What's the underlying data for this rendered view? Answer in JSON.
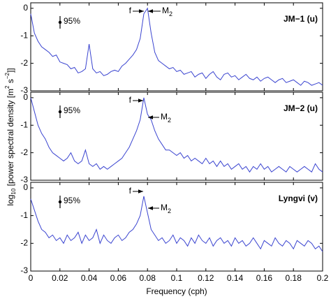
{
  "chart_data": [
    {
      "type": "line",
      "color": "#3a44d0",
      "xlim": [
        0,
        0.2
      ],
      "ylim": [
        -3,
        0.2
      ],
      "yticks": [
        -3,
        -2,
        -1,
        0
      ],
      "xticks": [
        0,
        0.02,
        0.04,
        0.06,
        0.08,
        0.1,
        0.12,
        0.14,
        0.16,
        0.18,
        0.2
      ],
      "show_xticklabels": false,
      "annotations": {
        "label": "JM−1 (u)",
        "confidence": "95%",
        "f": "f",
        "m2": "M",
        "m2_sub": "2"
      },
      "x": [
        0,
        0.0025,
        0.005,
        0.0075,
        0.01,
        0.0125,
        0.015,
        0.0175,
        0.02,
        0.0225,
        0.025,
        0.0275,
        0.03,
        0.0325,
        0.035,
        0.0375,
        0.04,
        0.0425,
        0.045,
        0.0475,
        0.05,
        0.0525,
        0.055,
        0.0575,
        0.06,
        0.0625,
        0.065,
        0.0675,
        0.07,
        0.0725,
        0.075,
        0.0775,
        0.08,
        0.0825,
        0.085,
        0.0875,
        0.09,
        0.0925,
        0.095,
        0.0975,
        0.1,
        0.1025,
        0.105,
        0.1075,
        0.11,
        0.1125,
        0.115,
        0.1175,
        0.12,
        0.1225,
        0.125,
        0.1275,
        0.13,
        0.1325,
        0.135,
        0.1375,
        0.14,
        0.1425,
        0.145,
        0.1475,
        0.15,
        0.1525,
        0.155,
        0.1575,
        0.16,
        0.1625,
        0.165,
        0.1675,
        0.17,
        0.1725,
        0.175,
        0.1775,
        0.18,
        0.1825,
        0.185,
        0.1875,
        0.19,
        0.1925,
        0.195,
        0.1975,
        0.2
      ],
      "values": [
        -0.2,
        -0.9,
        -1.2,
        -1.4,
        -1.5,
        -1.6,
        -1.75,
        -1.7,
        -1.95,
        -2.0,
        -2.05,
        -2.2,
        -2.15,
        -2.35,
        -2.3,
        -2.2,
        -1.3,
        -2.2,
        -2.35,
        -2.3,
        -2.45,
        -2.4,
        -2.3,
        -2.25,
        -2.3,
        -2.1,
        -2.0,
        -1.85,
        -1.7,
        -1.5,
        -1.1,
        -0.2,
        0.0,
        -0.9,
        -1.6,
        -1.9,
        -2.0,
        -2.1,
        -2.2,
        -2.15,
        -2.3,
        -2.25,
        -2.4,
        -2.35,
        -2.3,
        -2.5,
        -2.4,
        -2.35,
        -2.55,
        -2.4,
        -2.3,
        -2.5,
        -2.6,
        -2.4,
        -2.35,
        -2.5,
        -2.45,
        -2.6,
        -2.5,
        -2.4,
        -2.55,
        -2.6,
        -2.5,
        -2.65,
        -2.55,
        -2.5,
        -2.6,
        -2.7,
        -2.6,
        -2.55,
        -2.7,
        -2.65,
        -2.6,
        -2.7,
        -2.8,
        -2.65,
        -2.7,
        -2.8,
        -2.75,
        -2.7,
        -2.8
      ]
    },
    {
      "type": "line",
      "color": "#3a44d0",
      "xlim": [
        0,
        0.2
      ],
      "ylim": [
        -3,
        0.2
      ],
      "yticks": [
        -3,
        -2,
        -1,
        0
      ],
      "xticks": [
        0,
        0.02,
        0.04,
        0.06,
        0.08,
        0.1,
        0.12,
        0.14,
        0.16,
        0.18,
        0.2
      ],
      "show_xticklabels": false,
      "ylabel_parts": [
        "log",
        "10",
        " [power spectral density [m",
        "2",
        " s",
        "−2",
        "]]"
      ],
      "annotations": {
        "label": "JM−2 (u)",
        "confidence": "95%",
        "f": "f",
        "m2": "M",
        "m2_sub": "2"
      },
      "x": [
        0,
        0.0025,
        0.005,
        0.0075,
        0.01,
        0.0125,
        0.015,
        0.0175,
        0.02,
        0.0225,
        0.025,
        0.0275,
        0.03,
        0.0325,
        0.035,
        0.0375,
        0.04,
        0.0425,
        0.045,
        0.0475,
        0.05,
        0.0525,
        0.055,
        0.0575,
        0.06,
        0.0625,
        0.065,
        0.0675,
        0.07,
        0.0725,
        0.075,
        0.0775,
        0.08,
        0.0825,
        0.085,
        0.0875,
        0.09,
        0.0925,
        0.095,
        0.0975,
        0.1,
        0.1025,
        0.105,
        0.1075,
        0.11,
        0.1125,
        0.115,
        0.1175,
        0.12,
        0.1225,
        0.125,
        0.1275,
        0.13,
        0.1325,
        0.135,
        0.1375,
        0.14,
        0.1425,
        0.145,
        0.1475,
        0.15,
        0.1525,
        0.155,
        0.1575,
        0.16,
        0.1625,
        0.165,
        0.1675,
        0.17,
        0.1725,
        0.175,
        0.1775,
        0.18,
        0.1825,
        0.185,
        0.1875,
        0.19,
        0.1925,
        0.195,
        0.1975,
        0.2
      ],
      "values": [
        0.0,
        -0.5,
        -1.0,
        -1.3,
        -1.5,
        -1.8,
        -2.0,
        -2.1,
        -2.2,
        -2.3,
        -2.2,
        -2.0,
        -2.3,
        -2.4,
        -2.3,
        -1.9,
        -2.4,
        -2.5,
        -2.4,
        -2.6,
        -2.5,
        -2.6,
        -2.5,
        -2.4,
        -2.3,
        -2.2,
        -2.0,
        -1.8,
        -1.5,
        -1.2,
        -0.8,
        0.0,
        -0.6,
        -0.8,
        -1.2,
        -1.5,
        -1.7,
        -1.9,
        -1.9,
        -2.0,
        -2.1,
        -2.0,
        -2.2,
        -2.1,
        -2.3,
        -2.2,
        -2.3,
        -2.4,
        -2.2,
        -2.4,
        -2.3,
        -2.5,
        -2.3,
        -2.5,
        -2.4,
        -2.6,
        -2.5,
        -2.4,
        -2.6,
        -2.5,
        -2.7,
        -2.5,
        -2.6,
        -2.4,
        -2.6,
        -2.5,
        -2.7,
        -2.6,
        -2.5,
        -2.6,
        -2.7,
        -2.5,
        -2.6,
        -2.7,
        -2.6,
        -2.5,
        -2.6,
        -2.7,
        -2.4,
        -2.6,
        -2.7
      ]
    },
    {
      "type": "line",
      "color": "#3a44d0",
      "xlim": [
        0,
        0.2
      ],
      "ylim": [
        -3,
        0.2
      ],
      "yticks": [
        -3,
        -2,
        -1,
        0
      ],
      "xticks": [
        0,
        0.02,
        0.04,
        0.06,
        0.08,
        0.1,
        0.12,
        0.14,
        0.16,
        0.18,
        0.2
      ],
      "show_xticklabels": true,
      "xlabel": "Frequency (cph)",
      "annotations": {
        "label": "Lyngvi (v)",
        "confidence": "95%",
        "f": "f",
        "m2": "M",
        "m2_sub": "2"
      },
      "x": [
        0,
        0.0025,
        0.005,
        0.0075,
        0.01,
        0.0125,
        0.015,
        0.0175,
        0.02,
        0.0225,
        0.025,
        0.0275,
        0.03,
        0.0325,
        0.035,
        0.0375,
        0.04,
        0.0425,
        0.045,
        0.0475,
        0.05,
        0.0525,
        0.055,
        0.0575,
        0.06,
        0.0625,
        0.065,
        0.0675,
        0.07,
        0.0725,
        0.075,
        0.0775,
        0.08,
        0.0825,
        0.085,
        0.0875,
        0.09,
        0.0925,
        0.095,
        0.0975,
        0.1,
        0.1025,
        0.105,
        0.1075,
        0.11,
        0.1125,
        0.115,
        0.1175,
        0.12,
        0.1225,
        0.125,
        0.1275,
        0.13,
        0.1325,
        0.135,
        0.1375,
        0.14,
        0.1425,
        0.145,
        0.1475,
        0.15,
        0.1525,
        0.155,
        0.1575,
        0.16,
        0.1625,
        0.165,
        0.1675,
        0.17,
        0.1725,
        0.175,
        0.1775,
        0.18,
        0.1825,
        0.185,
        0.1875,
        0.19,
        0.1925,
        0.195,
        0.1975,
        0.2
      ],
      "values": [
        -0.4,
        -0.8,
        -1.2,
        -1.5,
        -1.6,
        -1.8,
        -1.7,
        -1.9,
        -1.8,
        -2.0,
        -1.7,
        -1.9,
        -1.8,
        -1.6,
        -2.0,
        -1.7,
        -1.9,
        -1.8,
        -1.5,
        -2.0,
        -1.7,
        -1.9,
        -2.0,
        -1.8,
        -1.7,
        -1.9,
        -1.8,
        -1.6,
        -1.5,
        -1.3,
        -1.0,
        -0.3,
        -0.9,
        -1.5,
        -1.7,
        -1.9,
        -1.8,
        -2.0,
        -1.9,
        -1.7,
        -2.0,
        -1.8,
        -1.9,
        -2.1,
        -1.8,
        -2.0,
        -1.7,
        -1.9,
        -2.0,
        -1.8,
        -2.1,
        -1.9,
        -1.8,
        -2.0,
        -1.9,
        -2.1,
        -1.8,
        -2.0,
        -1.9,
        -2.1,
        -2.0,
        -1.8,
        -2.0,
        -2.2,
        -1.9,
        -2.0,
        -2.1,
        -1.8,
        -2.0,
        -2.1,
        -1.9,
        -2.0,
        -2.2,
        -1.9,
        -2.0,
        -2.1,
        -1.9,
        -2.0,
        -2.2,
        -2.1,
        -2.3
      ]
    }
  ]
}
